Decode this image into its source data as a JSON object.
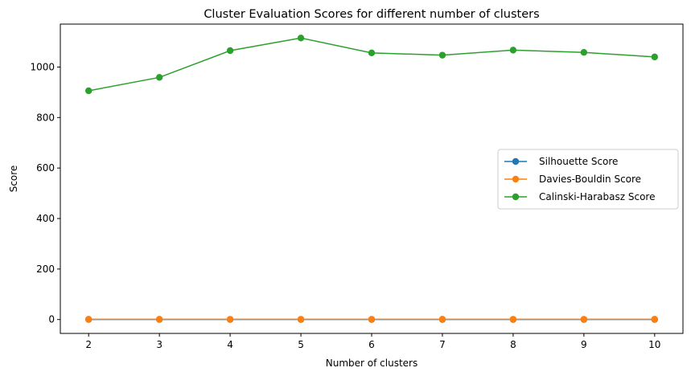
{
  "chart_data": {
    "type": "line",
    "title": "Cluster Evaluation Scores for different number of clusters",
    "xlabel": "Number of clusters",
    "ylabel": "Score",
    "x": [
      2,
      3,
      4,
      5,
      6,
      7,
      8,
      9,
      10
    ],
    "xlim": [
      1.6,
      10.4
    ],
    "ylim": [
      -55,
      1170
    ],
    "xticks": [
      2,
      3,
      4,
      5,
      6,
      7,
      8,
      9,
      10
    ],
    "yticks": [
      0,
      200,
      400,
      600,
      800,
      1000
    ],
    "grid": false,
    "legend_position": "center-right",
    "series": [
      {
        "name": "Silhouette Score",
        "color": "#1f77b4",
        "values": [
          0.35,
          0.33,
          0.32,
          0.31,
          0.3,
          0.29,
          0.28,
          0.27,
          0.26
        ]
      },
      {
        "name": "Davies-Bouldin Score",
        "color": "#ff7f0e",
        "values": [
          1.1,
          1.05,
          1.0,
          1.0,
          1.02,
          1.05,
          1.0,
          1.03,
          1.05
        ]
      },
      {
        "name": "Calinski-Harabasz Score",
        "color": "#2ca02c",
        "values": [
          906,
          959,
          1065,
          1115,
          1056,
          1047,
          1067,
          1058,
          1040
        ]
      }
    ]
  }
}
